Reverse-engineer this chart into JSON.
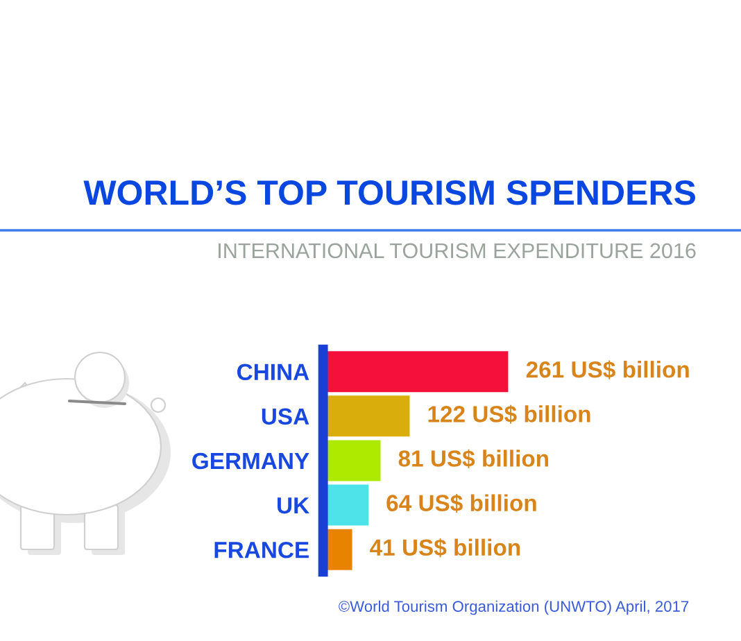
{
  "chart_data": {
    "type": "bar",
    "orientation": "horizontal",
    "title": "WORLD’S TOP TOURISM SPENDERS",
    "subtitle": "INTERNATIONAL TOURISM EXPENDITURE 2016",
    "categories": [
      "CHINA",
      "USA",
      "GERMANY",
      "UK",
      "FRANCE"
    ],
    "values": [
      261,
      122,
      81,
      64,
      41
    ],
    "colors": [
      "#f5103c",
      "#d9ad0c",
      "#aeea00",
      "#4ee3e8",
      "#e88300"
    ],
    "value_labels": [
      "261 US$ billion",
      "122 US$ billion",
      "81 US$ billion",
      "64 US$ billion",
      "41 US$ billion"
    ],
    "tick_labels": "y",
    "annotations": [
      "©World Tourism Organization (UNWTO) April, 2017"
    ]
  }
}
